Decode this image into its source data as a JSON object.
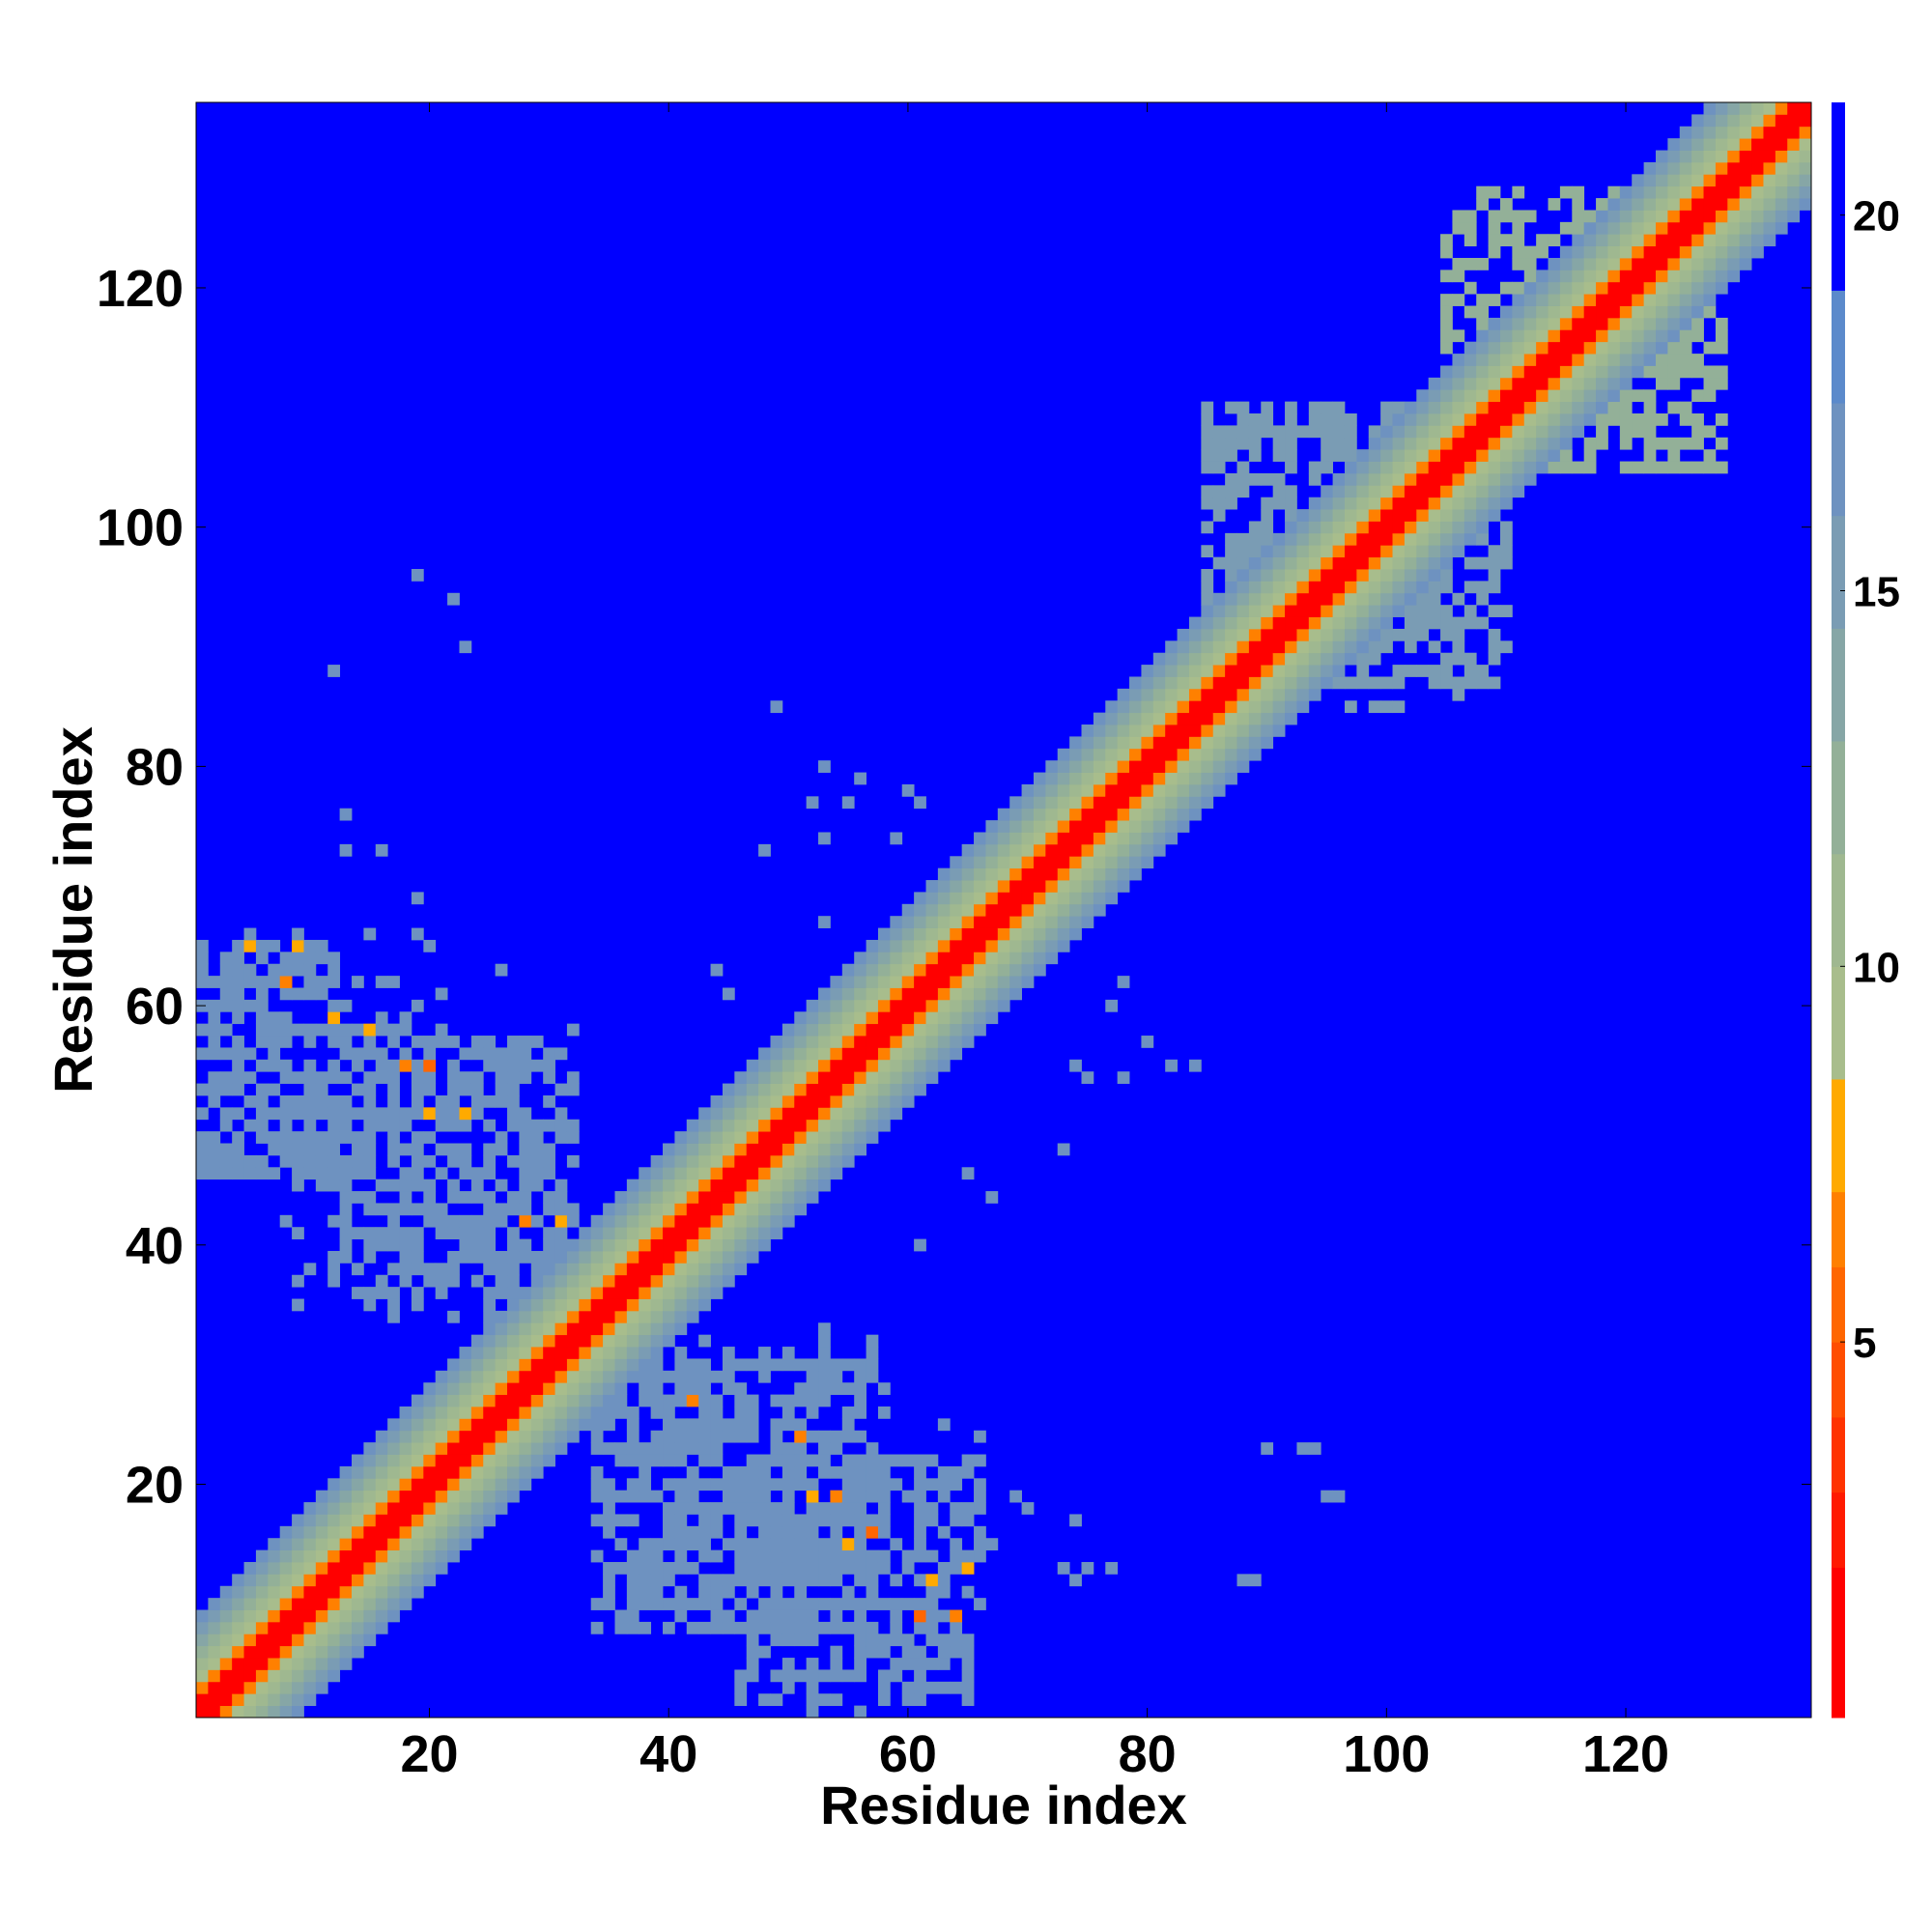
{
  "chart_data": {
    "type": "heatmap",
    "title": "",
    "xlabel": "Residue index",
    "ylabel": "Residue index",
    "residue_count": 135,
    "xlim": [
      0.5,
      135.5
    ],
    "ylim": [
      0.5,
      135.5
    ],
    "x_ticks": [
      20,
      40,
      60,
      80,
      100,
      120
    ],
    "y_ticks": [
      20,
      40,
      60,
      80,
      100,
      120
    ],
    "x_tick_labels": [
      "20",
      "40",
      "60",
      "80",
      "100",
      "120"
    ],
    "y_tick_labels": [
      "20",
      "40",
      "60",
      "80",
      "100",
      "120"
    ],
    "grid": false,
    "colorbar": {
      "placement": "right",
      "range": [
        0,
        21.5
      ],
      "ticks": [
        5,
        10,
        15,
        20
      ],
      "tick_labels": [
        "5",
        "10",
        "15",
        "20"
      ],
      "levels": [
        {
          "min": 0,
          "max": 2,
          "color": "#ff0000"
        },
        {
          "min": 2,
          "max": 3,
          "color": "#ff1a00"
        },
        {
          "min": 3,
          "max": 4,
          "color": "#ff3300"
        },
        {
          "min": 4,
          "max": 5,
          "color": "#ff4d00"
        },
        {
          "min": 5,
          "max": 6,
          "color": "#ff6600"
        },
        {
          "min": 6,
          "max": 7,
          "color": "#ff8000"
        },
        {
          "min": 7,
          "max": 8.5,
          "color": "#ffaa00"
        },
        {
          "min": 8.5,
          "max": 10,
          "color": "#a8bd8c"
        },
        {
          "min": 10,
          "max": 11.5,
          "color": "#9fb890"
        },
        {
          "min": 11.5,
          "max": 13,
          "color": "#93b098"
        },
        {
          "min": 13,
          "max": 14.5,
          "color": "#86a6a6"
        },
        {
          "min": 14.5,
          "max": 16,
          "color": "#7a9cb4"
        },
        {
          "min": 16,
          "max": 17.5,
          "color": "#6e92c0"
        },
        {
          "min": 17.5,
          "max": 19,
          "color": "#5b8acb"
        },
        {
          "min": 19,
          "max": 21.5,
          "color": "#0000ff"
        }
      ]
    },
    "band": {
      "description_values": "distance ≈ 3.8 Å per residue separation, saturating at 21",
      "red_max_separation": 1,
      "orange_max_separation": 2,
      "green_max_separation": 5
    },
    "contact_patches": [
      {
        "x": [
          1,
          12
        ],
        "y": [
          46,
          65
        ],
        "value": 17
      },
      {
        "x": [
          12,
          32
        ],
        "y": [
          35,
          58
        ],
        "value": 17
      },
      {
        "x": [
          34,
          56
        ],
        "y": [
          8,
          30
        ],
        "value": 17
      },
      {
        "x": [
          46,
          66
        ],
        "y": [
          2,
          22
        ],
        "value": 17
      },
      {
        "x": [
          85,
          110
        ],
        "y": [
          87,
          110
        ],
        "value": 15
      },
      {
        "x": [
          105,
          128
        ],
        "y": [
          105,
          128
        ],
        "value": 12
      }
    ],
    "hotspots": [
      {
        "x": 8,
        "y": 62,
        "value": 6
      },
      {
        "x": 9,
        "y": 65,
        "value": 7
      },
      {
        "x": 5,
        "y": 65,
        "value": 7
      },
      {
        "x": 18,
        "y": 55,
        "value": 6
      },
      {
        "x": 20,
        "y": 55,
        "value": 5
      },
      {
        "x": 20,
        "y": 51,
        "value": 7
      },
      {
        "x": 23,
        "y": 51,
        "value": 7
      },
      {
        "x": 28,
        "y": 42,
        "value": 6
      },
      {
        "x": 31,
        "y": 42,
        "value": 7
      },
      {
        "x": 42,
        "y": 27,
        "value": 6
      },
      {
        "x": 51,
        "y": 24,
        "value": 6
      },
      {
        "x": 52,
        "y": 19,
        "value": 7
      },
      {
        "x": 54,
        "y": 19,
        "value": 6
      },
      {
        "x": 55,
        "y": 15,
        "value": 7
      },
      {
        "x": 61,
        "y": 9,
        "value": 5
      },
      {
        "x": 62,
        "y": 12,
        "value": 7
      },
      {
        "x": 64,
        "y": 9,
        "value": 6
      },
      {
        "x": 65,
        "y": 13,
        "value": 7
      },
      {
        "x": 57,
        "y": 16,
        "value": 5
      },
      {
        "x": 12,
        "y": 59,
        "value": 7
      },
      {
        "x": 15,
        "y": 58,
        "value": 7
      }
    ],
    "scatter_cells": [
      {
        "x": 19,
        "y": 96,
        "value": 17
      },
      {
        "x": 22,
        "y": 94,
        "value": 17
      },
      {
        "x": 23,
        "y": 90,
        "value": 17
      },
      {
        "x": 12,
        "y": 88,
        "value": 17
      },
      {
        "x": 13,
        "y": 76,
        "value": 17
      },
      {
        "x": 16,
        "y": 73,
        "value": 17
      },
      {
        "x": 13,
        "y": 73,
        "value": 17
      },
      {
        "x": 19,
        "y": 69,
        "value": 17
      },
      {
        "x": 15,
        "y": 66,
        "value": 17
      },
      {
        "x": 19,
        "y": 66,
        "value": 17
      },
      {
        "x": 26,
        "y": 63,
        "value": 17
      },
      {
        "x": 49,
        "y": 85,
        "value": 17
      },
      {
        "x": 53,
        "y": 80,
        "value": 17
      },
      {
        "x": 56,
        "y": 79,
        "value": 17
      },
      {
        "x": 52,
        "y": 77,
        "value": 17
      },
      {
        "x": 55,
        "y": 77,
        "value": 17
      },
      {
        "x": 60,
        "y": 78,
        "value": 17
      },
      {
        "x": 61,
        "y": 77,
        "value": 17
      },
      {
        "x": 53,
        "y": 74,
        "value": 17
      },
      {
        "x": 59,
        "y": 74,
        "value": 17
      },
      {
        "x": 48,
        "y": 73,
        "value": 17
      },
      {
        "x": 53,
        "y": 67,
        "value": 17
      },
      {
        "x": 44,
        "y": 63,
        "value": 17
      },
      {
        "x": 45,
        "y": 61,
        "value": 17
      },
      {
        "x": 77,
        "y": 60,
        "value": 17
      },
      {
        "x": 78,
        "y": 62,
        "value": 17
      },
      {
        "x": 74,
        "y": 55,
        "value": 17
      },
      {
        "x": 75,
        "y": 54,
        "value": 17
      },
      {
        "x": 78,
        "y": 54,
        "value": 17
      },
      {
        "x": 80,
        "y": 57,
        "value": 17
      },
      {
        "x": 82,
        "y": 55,
        "value": 17
      },
      {
        "x": 84,
        "y": 55,
        "value": 17
      },
      {
        "x": 73,
        "y": 48,
        "value": 17
      },
      {
        "x": 65,
        "y": 46,
        "value": 17
      },
      {
        "x": 67,
        "y": 44,
        "value": 17
      },
      {
        "x": 61,
        "y": 40,
        "value": 17
      },
      {
        "x": 53,
        "y": 33,
        "value": 17
      },
      {
        "x": 50,
        "y": 31,
        "value": 17
      },
      {
        "x": 57,
        "y": 31,
        "value": 17
      },
      {
        "x": 58,
        "y": 26,
        "value": 17
      },
      {
        "x": 63,
        "y": 25,
        "value": 17
      },
      {
        "x": 66,
        "y": 24,
        "value": 17
      },
      {
        "x": 67,
        "y": 15,
        "value": 17
      },
      {
        "x": 69,
        "y": 19,
        "value": 17
      },
      {
        "x": 70,
        "y": 18,
        "value": 17
      },
      {
        "x": 73,
        "y": 13,
        "value": 17
      },
      {
        "x": 74,
        "y": 12,
        "value": 17
      },
      {
        "x": 75,
        "y": 13,
        "value": 17
      },
      {
        "x": 77,
        "y": 13,
        "value": 17
      },
      {
        "x": 88,
        "y": 12,
        "value": 17
      },
      {
        "x": 89,
        "y": 12,
        "value": 17
      },
      {
        "x": 90,
        "y": 23,
        "value": 17
      },
      {
        "x": 93,
        "y": 23,
        "value": 17
      },
      {
        "x": 94,
        "y": 23,
        "value": 17
      },
      {
        "x": 95,
        "y": 19,
        "value": 17
      },
      {
        "x": 96,
        "y": 19,
        "value": 17
      },
      {
        "x": 74,
        "y": 17,
        "value": 17
      }
    ]
  }
}
